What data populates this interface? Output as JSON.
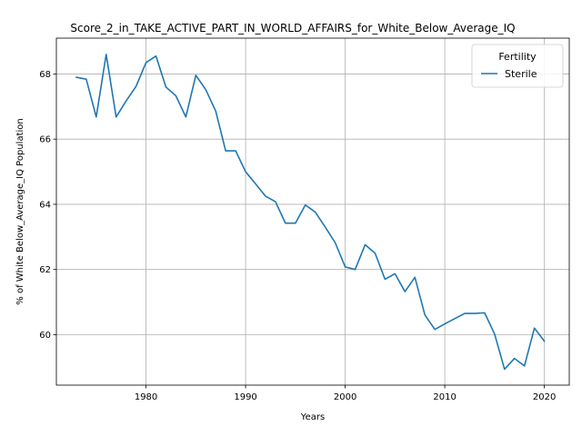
{
  "chart_data": {
    "type": "line",
    "title": "Score_2_in_TAKE_ACTIVE_PART_IN_WORLD_AFFAIRS_for_White_Below_Average_IQ",
    "xlabel": "Years",
    "ylabel": "% of White Below_Average_IQ Population",
    "xlim": [
      1971,
      2022.5
    ],
    "ylim": [
      58.45,
      69.1
    ],
    "xticks": [
      1980,
      1990,
      2000,
      2010,
      2020
    ],
    "yticks": [
      60,
      62,
      64,
      66,
      68
    ],
    "grid": true,
    "legend": {
      "title": "Fertility",
      "placement": "top-right"
    },
    "colors": {
      "Sterile": "#1f77b4"
    },
    "series": [
      {
        "name": "Sterile",
        "x": [
          1973,
          1974,
          1975,
          1976,
          1977,
          1978,
          1979,
          1980,
          1981,
          1982,
          1983,
          1984,
          1985,
          1986,
          1987,
          1988,
          1989,
          1990,
          1991,
          1992,
          1993,
          1994,
          1995,
          1996,
          1997,
          1998,
          1999,
          2000,
          2001,
          2002,
          2003,
          2004,
          2005,
          2006,
          2007,
          2008,
          2009,
          2010,
          2011,
          2012,
          2013,
          2014,
          2015,
          2016,
          2017,
          2018,
          2019,
          2020
        ],
        "values": [
          67.9,
          67.84,
          66.68,
          68.6,
          66.68,
          67.17,
          67.62,
          68.35,
          68.55,
          67.6,
          67.33,
          66.68,
          67.96,
          67.52,
          66.86,
          65.64,
          65.64,
          65.0,
          64.63,
          64.25,
          64.08,
          63.42,
          63.42,
          63.98,
          63.76,
          63.3,
          62.82,
          62.08,
          62.0,
          62.76,
          62.5,
          61.7,
          61.87,
          61.32,
          61.76,
          60.61,
          60.16,
          60.33,
          60.49,
          60.65,
          60.65,
          60.67,
          60.02,
          58.94,
          59.27,
          59.04,
          60.2,
          59.8
        ]
      }
    ]
  }
}
